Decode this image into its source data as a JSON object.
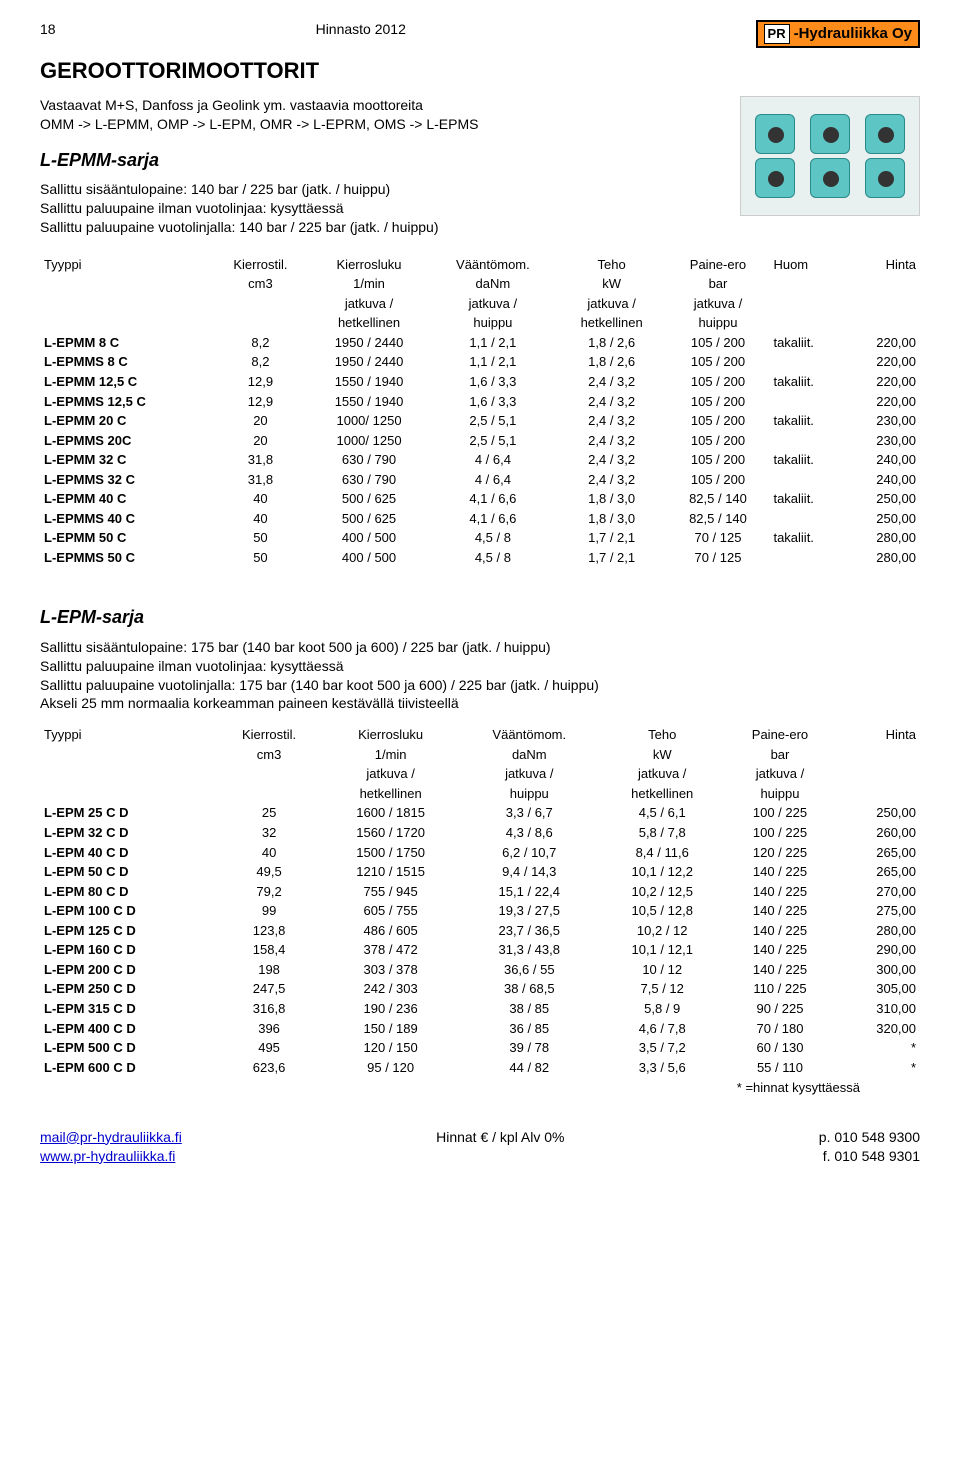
{
  "header": {
    "page_number": "18",
    "doc_title": "Hinnasto 2012",
    "logo_pr": "PR",
    "logo_text": "-Hydrauliikka Oy"
  },
  "title": "GEROOTTORIMOOTTORIT",
  "intro_lines": [
    "Vastaavat M+S, Danfoss ja Geolink ym. vastaavia moottoreita",
    "OMM -> L-EPMM, OMP -> L-EPM, OMR -> L-EPRM, OMS -> L-EPMS"
  ],
  "section1": {
    "heading": "L-EPMM-sarja",
    "spec_lines": [
      "Sallittu sisääntulopaine: 140 bar / 225 bar (jatk. / huippu)",
      "Sallittu paluupaine ilman vuotolinjaa: kysyttäessä",
      "Sallittu paluupaine vuotolinjalla: 140 bar / 225 bar (jatk. / huippu)"
    ],
    "columns": [
      {
        "l1": "Tyyppi",
        "l2": "",
        "l3": "",
        "l4": ""
      },
      {
        "l1": "Kierrostil.",
        "l2": "cm3",
        "l3": "",
        "l4": ""
      },
      {
        "l1": "Kierrosluku",
        "l2": "1/min",
        "l3": "jatkuva /",
        "l4": "hetkellinen"
      },
      {
        "l1": "Vääntömom.",
        "l2": "daNm",
        "l3": "jatkuva /",
        "l4": "huippu"
      },
      {
        "l1": "Teho",
        "l2": "kW",
        "l3": "jatkuva /",
        "l4": "hetkellinen"
      },
      {
        "l1": "Paine-ero",
        "l2": "bar",
        "l3": "jatkuva /",
        "l4": "huippu"
      },
      {
        "l1": "Huom",
        "l2": "",
        "l3": "",
        "l4": ""
      },
      {
        "l1": "Hinta",
        "l2": "",
        "l3": "",
        "l4": ""
      }
    ],
    "rows": [
      [
        "L-EPMM 8 C",
        "8,2",
        "1950 / 2440",
        "1,1 / 2,1",
        "1,8 / 2,6",
        "105 / 200",
        "takaliit.",
        "220,00"
      ],
      [
        "L-EPMMS 8 C",
        "8,2",
        "1950 / 2440",
        "1,1 / 2,1",
        "1,8 / 2,6",
        "105 / 200",
        "",
        "220,00"
      ],
      [
        "L-EPMM 12,5 C",
        "12,9",
        "1550 / 1940",
        "1,6 / 3,3",
        "2,4 / 3,2",
        "105 / 200",
        "takaliit.",
        "220,00"
      ],
      [
        "L-EPMMS 12,5 C",
        "12,9",
        "1550 / 1940",
        "1,6 / 3,3",
        "2,4 / 3,2",
        "105 / 200",
        "",
        "220,00"
      ],
      [
        "L-EPMM 20 C",
        "20",
        "1000/ 1250",
        "2,5 / 5,1",
        "2,4 / 3,2",
        "105 / 200",
        "takaliit.",
        "230,00"
      ],
      [
        "L-EPMMS 20C",
        "20",
        "1000/ 1250",
        "2,5 / 5,1",
        "2,4 / 3,2",
        "105 / 200",
        "",
        "230,00"
      ],
      [
        "L-EPMM 32 C",
        "31,8",
        "630 / 790",
        "4 / 6,4",
        "2,4 / 3,2",
        "105 / 200",
        "takaliit.",
        "240,00"
      ],
      [
        "L-EPMMS 32 C",
        "31,8",
        "630 / 790",
        "4 / 6,4",
        "2,4 / 3,2",
        "105 / 200",
        "",
        "240,00"
      ],
      [
        "L-EPMM 40 C",
        "40",
        "500 / 625",
        "4,1 / 6,6",
        "1,8 / 3,0",
        "82,5 / 140",
        "takaliit.",
        "250,00"
      ],
      [
        "L-EPMMS 40 C",
        "40",
        "500 / 625",
        "4,1 / 6,6",
        "1,8 / 3,0",
        "82,5 / 140",
        "",
        "250,00"
      ],
      [
        "L-EPMM 50 C",
        "50",
        "400 / 500",
        "4,5 / 8",
        "1,7 / 2,1",
        "70 / 125",
        "takaliit.",
        "280,00"
      ],
      [
        "L-EPMMS 50 C",
        "50",
        "400 / 500",
        "4,5 / 8",
        "1,7 / 2,1",
        "70 / 125",
        "",
        "280,00"
      ]
    ]
  },
  "section2": {
    "heading": "L-EPM-sarja",
    "spec_lines": [
      "Sallittu sisääntulopaine: 175 bar (140 bar koot 500 ja 600) / 225 bar (jatk. / huippu)",
      "Sallittu paluupaine ilman vuotolinjaa: kysyttäessä",
      "Sallittu paluupaine vuotolinjalla: 175 bar (140 bar koot 500 ja 600) / 225 bar (jatk. / huippu)",
      "Akseli 25 mm  normaalia korkeamman paineen kestävällä tiivisteellä"
    ],
    "columns": [
      {
        "l1": "Tyyppi",
        "l2": "",
        "l3": "",
        "l4": ""
      },
      {
        "l1": "Kierrostil.",
        "l2": "cm3",
        "l3": "",
        "l4": ""
      },
      {
        "l1": "Kierrosluku",
        "l2": "1/min",
        "l3": "jatkuva /",
        "l4": "hetkellinen"
      },
      {
        "l1": "Vääntömom.",
        "l2": "daNm",
        "l3": "jatkuva /",
        "l4": "huippu"
      },
      {
        "l1": "Teho",
        "l2": "kW",
        "l3": "jatkuva /",
        "l4": "hetkellinen"
      },
      {
        "l1": "Paine-ero",
        "l2": "bar",
        "l3": "jatkuva /",
        "l4": "huippu"
      },
      {
        "l1": "Hinta",
        "l2": "",
        "l3": "",
        "l4": ""
      }
    ],
    "rows": [
      [
        "L-EPM 25 C D",
        "25",
        "1600 / 1815",
        "3,3 / 6,7",
        "4,5 / 6,1",
        "100 / 225",
        "250,00"
      ],
      [
        "L-EPM 32 C D",
        "32",
        "1560 / 1720",
        "4,3 / 8,6",
        "5,8 / 7,8",
        "100 / 225",
        "260,00"
      ],
      [
        "L-EPM 40 C D",
        "40",
        "1500 / 1750",
        "6,2 / 10,7",
        "8,4 / 11,6",
        "120 / 225",
        "265,00"
      ],
      [
        "L-EPM 50 C D",
        "49,5",
        "1210 / 1515",
        "9,4 / 14,3",
        "10,1 / 12,2",
        "140 / 225",
        "265,00"
      ],
      [
        "L-EPM 80 C D",
        "79,2",
        "755 / 945",
        "15,1 / 22,4",
        "10,2 / 12,5",
        "140 / 225",
        "270,00"
      ],
      [
        "L-EPM 100 C D",
        "99",
        "605 / 755",
        "19,3 / 27,5",
        "10,5 / 12,8",
        "140 / 225",
        "275,00"
      ],
      [
        "L-EPM 125 C D",
        "123,8",
        "486 / 605",
        "23,7 / 36,5",
        "10,2 / 12",
        "140 / 225",
        "280,00"
      ],
      [
        "L-EPM 160 C D",
        "158,4",
        "378 / 472",
        "31,3 / 43,8",
        "10,1 / 12,1",
        "140 / 225",
        "290,00"
      ],
      [
        "L-EPM 200 C D",
        "198",
        "303 / 378",
        "36,6 / 55",
        "10 / 12",
        "140 / 225",
        "300,00"
      ],
      [
        "L-EPM 250 C D",
        "247,5",
        "242 / 303",
        "38 / 68,5",
        "7,5 / 12",
        "110 / 225",
        "305,00"
      ],
      [
        "L-EPM 315 C D",
        "316,8",
        "190 / 236",
        "38 / 85",
        "5,8 / 9",
        "90 / 225",
        "310,00"
      ],
      [
        "L-EPM 400 C D",
        "396",
        "150 / 189",
        "36 / 85",
        "4,6 / 7,8",
        "70 / 180",
        "320,00"
      ],
      [
        "L-EPM 500 C D",
        "495",
        "120 / 150",
        "39 / 78",
        "3,5 / 7,2",
        "60 / 130",
        "*"
      ],
      [
        "L-EPM 600 C D",
        "623,6",
        "95 / 120",
        "44 / 82",
        "3,3 / 5,6",
        "55 / 110",
        "*"
      ]
    ],
    "footnote": "* =hinnat kysyttäessä"
  },
  "footer": {
    "email": "mail@pr-hydrauliikka.fi",
    "web": "www.pr-hydrauliikka.fi",
    "center": "Hinnat € / kpl Alv 0%",
    "phone1": "p. 010 548 9300",
    "phone2": "f. 010 548 9301"
  }
}
